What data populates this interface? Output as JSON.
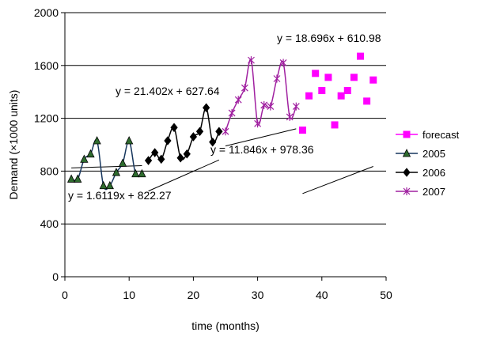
{
  "chart_data": {
    "type": "line",
    "title": "",
    "xlabel": "time (months)",
    "ylabel": "Demand (x1000 units)",
    "xlim": [
      0,
      50
    ],
    "ylim": [
      0,
      2000
    ],
    "x_ticks": [
      0,
      10,
      20,
      30,
      40,
      50
    ],
    "y_ticks": [
      0,
      400,
      800,
      1200,
      1600,
      2000
    ],
    "x_tick_labels": [
      "0",
      "10",
      "20",
      "30",
      "40",
      "50"
    ],
    "y_tick_labels": [
      "0",
      "400",
      "800",
      "1200",
      "1600",
      "2000"
    ],
    "grid": "horizontal",
    "legend_position": "right",
    "series": [
      {
        "name": "2005",
        "color": "#17375E",
        "marker": "triangle",
        "marker_fill": "#2E6B2E",
        "x": [
          1,
          2,
          3,
          4,
          5,
          6,
          7,
          8,
          9,
          10,
          11,
          12
        ],
        "y": [
          740,
          740,
          890,
          930,
          1030,
          690,
          690,
          790,
          860,
          1030,
          780,
          780
        ]
      },
      {
        "name": "2006",
        "color": "#000000",
        "marker": "diamond",
        "marker_fill": "#000000",
        "x": [
          13,
          14,
          15,
          16,
          17,
          18,
          19,
          20,
          21,
          22,
          23,
          24
        ],
        "y": [
          880,
          940,
          890,
          1030,
          1130,
          900,
          930,
          1060,
          1100,
          1280,
          1020,
          1100
        ]
      },
      {
        "name": "2007",
        "color": "#A020A0",
        "marker": "star",
        "marker_fill": "#A020A0",
        "x": [
          25,
          26,
          27,
          28,
          29,
          30,
          31,
          32,
          33,
          34,
          35,
          36
        ],
        "y": [
          1100,
          1240,
          1340,
          1430,
          1640,
          1160,
          1300,
          1290,
          1500,
          1620,
          1210,
          1290
        ]
      },
      {
        "name": "forecast",
        "color": "#FF00FF",
        "marker": "square",
        "marker_fill": "#FF00FF",
        "x": [
          37,
          38,
          39,
          40,
          41,
          42,
          43,
          44,
          45,
          46,
          47,
          48
        ],
        "y": [
          1110,
          1370,
          1540,
          1410,
          1510,
          1150,
          1370,
          1410,
          1510,
          1670,
          1330,
          1490
        ]
      }
    ],
    "trendlines": [
      {
        "x": [
          1,
          12
        ],
        "slope": 1.6119,
        "intercept": 822.27,
        "color": "#000000",
        "label": "y = 1.6119x + 822.27"
      },
      {
        "x": [
          13,
          24
        ],
        "slope": 21.402,
        "intercept": 627.64,
        "color": "#000000",
        "label": "y = 21.402x + 627.64"
      },
      {
        "x": [
          25,
          36
        ],
        "slope": 11.846,
        "intercept": 978.36,
        "color": "#000000",
        "label": "y = 11.846x + 978.36"
      },
      {
        "x": [
          37,
          48
        ],
        "slope": 18.696,
        "intercept": 610.98,
        "color": "#000000",
        "label": "y = 18.696x + 610.98"
      }
    ],
    "legend": [
      {
        "name": "forecast",
        "color": "#FF00FF",
        "marker": "square",
        "marker_fill": "#FF00FF"
      },
      {
        "name": "2005",
        "color": "#17375E",
        "marker": "triangle",
        "marker_fill": "#2E6B2E"
      },
      {
        "name": "2006",
        "color": "#000000",
        "marker": "diamond",
        "marker_fill": "#000000"
      },
      {
        "name": "2007",
        "color": "#A020A0",
        "marker": "star",
        "marker_fill": "#A020A0"
      }
    ]
  }
}
